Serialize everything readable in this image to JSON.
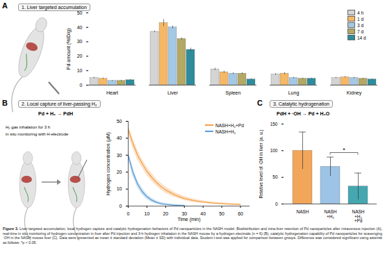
{
  "figure": {
    "caption_title": "Figure 3.",
    "caption": "Liver-targeted accumulation, local hydrogen capture and catalytic hydrogenation behaviors of Pd nanoparticles in the NASH model. Biodistribution and intra-liver retention of Pd nanoparticles after intravenous injection (A), real-time in situ monitoring of hydrogen concentration in liver after Pd injection and 3-h hydrogen inhalation in the NASH mouse by a hydrogen electrode (n = 6) (B), catalytic hydrogenation capability of Pd nanoparticles for scavenging ·OH in the NASH mouse liver (C). Data were presented as mean ± standard deviation (Mean ± SD) with individual data. Student t-test was applied for comparison between groups. Difference was considered significant using asterisk as follows: *p < 0.05.",
    "panels": [
      {
        "label": "A",
        "header": "1. Liver targeted accumulation"
      },
      {
        "label": "B",
        "header": "2. Local capture of liver-passing H₂",
        "equation": "Pd + H₂ → PdH",
        "notes": [
          "H₂ gas inhalation for 3 h",
          "in situ monitoring with H-electrode"
        ]
      },
      {
        "label": "C",
        "header": "3. Catalytic hydrogenation",
        "equation": "PdH + ·OH → Pd + H₂O"
      }
    ]
  },
  "chart_data": [
    {
      "type": "bar",
      "categories": [
        "Heart",
        "Liver",
        "Spleen",
        "Lung",
        "Kidney"
      ],
      "series": [
        {
          "name": "4 h",
          "color": "#d4d4d4",
          "values": [
            5,
            37,
            11,
            7.5,
            5
          ],
          "errors": [
            0.5,
            0.6,
            0.8,
            0.6,
            0.5
          ]
        },
        {
          "name": "1 d",
          "color": "#f6b866",
          "values": [
            4.5,
            43,
            9,
            8,
            5.5
          ],
          "errors": [
            0.5,
            2.5,
            0.8,
            0.8,
            0.5
          ]
        },
        {
          "name": "3 d",
          "color": "#a5c8e4",
          "values": [
            3,
            40,
            8,
            5,
            5
          ],
          "errors": [
            0.4,
            1,
            0.6,
            0.5,
            0.5
          ]
        },
        {
          "name": "7 d",
          "color": "#b3a864",
          "values": [
            3,
            32,
            8,
            4.5,
            4.5
          ],
          "errors": [
            0.4,
            0.8,
            0.6,
            0.5,
            0.4
          ]
        },
        {
          "name": "14 d",
          "color": "#2e8c9c",
          "values": [
            3.5,
            24.5,
            4,
            4.5,
            4
          ],
          "errors": [
            0.4,
            1.2,
            0.5,
            0.4,
            0.4
          ]
        }
      ],
      "ylabel": "Pd amount (%ID/g)",
      "ylim": [
        0,
        50
      ],
      "yticks": [
        0,
        10,
        20,
        30,
        40,
        50
      ],
      "legend": "top-right"
    },
    {
      "type": "line",
      "x": [
        0,
        2.5,
        5,
        7.5,
        10,
        12.5,
        15,
        17.5,
        20,
        25,
        30,
        35,
        40,
        45,
        50,
        55,
        60
      ],
      "series": [
        {
          "name": "NASH+H₂+Pd",
          "color": "#f4a04a",
          "values": [
            45,
            37,
            30,
            25,
            20.5,
            17,
            14,
            11.5,
            9.5,
            6.5,
            4.5,
            3.2,
            2.4,
            1.8,
            1.4,
            1.1,
            0.9
          ],
          "errors": [
            3,
            3,
            3,
            2.5,
            2.5,
            2.5,
            2,
            2,
            2,
            1.5,
            1.2,
            1,
            0.8,
            0.7,
            0.6,
            0.5,
            0.5
          ]
        },
        {
          "name": "NASH+H₂",
          "color": "#5b9bd5",
          "values": [
            30,
            20,
            13,
            8.5,
            5.5,
            3.5,
            2.2,
            1.4,
            1,
            0.5,
            0.3,
            null,
            null,
            null,
            null,
            null,
            null
          ],
          "errors": [
            2.5,
            2.5,
            2,
            1.8,
            1.5,
            1.2,
            1,
            0.8,
            0.6,
            0.4,
            0.3,
            null,
            null,
            null,
            null,
            null,
            null
          ]
        }
      ],
      "xlabel": "Time (min)",
      "ylabel": "Hydrogen concentration (μM)",
      "xlim": [
        0,
        65
      ],
      "xticks": [
        0,
        10,
        20,
        30,
        40,
        50,
        60
      ],
      "ylim": [
        0,
        50
      ],
      "yticks": [
        0,
        10,
        20,
        30,
        40,
        50
      ],
      "legend": "top-right"
    },
    {
      "type": "bar",
      "categories": [
        "NASH",
        "NASH\n+H₂",
        "NASH\n+H₂\n+Pd"
      ],
      "values": [
        100,
        70,
        33
      ],
      "errors": [
        35,
        18,
        25
      ],
      "colors": [
        "#f2a65a",
        "#9dc3e6",
        "#45a7b0"
      ],
      "ylabel": "Relative level of ·OH in liver (a. u.)",
      "ylim": [
        0,
        150
      ],
      "yticks": [
        0,
        50,
        100,
        150
      ],
      "significance": [
        {
          "between": [
            1,
            2
          ],
          "label": "*"
        }
      ]
    }
  ]
}
